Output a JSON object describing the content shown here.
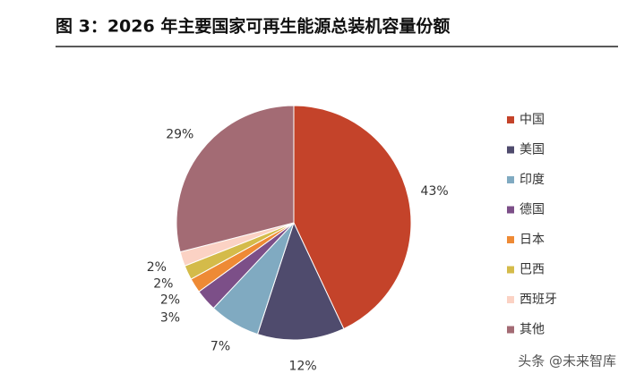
{
  "chart_data": {
    "type": "pie",
    "title": "图 3：2026 年主要国家可再生能源总装机容量份额",
    "categories": [
      "中国",
      "美国",
      "印度",
      "德国",
      "日本",
      "巴西",
      "西班牙",
      "其他"
    ],
    "values": [
      43,
      12,
      7,
      3,
      2,
      2,
      2,
      29
    ],
    "value_labels": [
      "43%",
      "12%",
      "7%",
      "3%",
      "2%",
      "2%",
      "2%",
      "29%"
    ],
    "colors": [
      "#c4432a",
      "#4f4b6d",
      "#80aac1",
      "#7c4f88",
      "#ee8a35",
      "#d4bb4a",
      "#fbd2c4",
      "#a36b74"
    ],
    "legend": "right"
  },
  "watermark": "头条 @未来智库"
}
